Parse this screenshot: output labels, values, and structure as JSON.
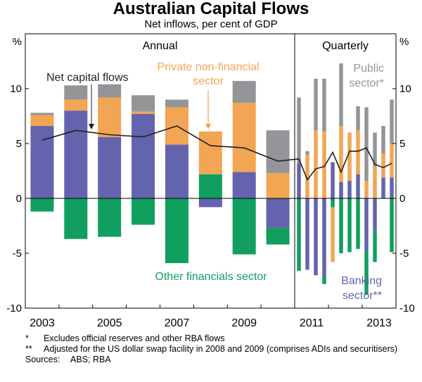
{
  "title": "Australian Capital Flows",
  "subtitle": "Net inflows, per cent of GDP",
  "chart_data": {
    "type": "bar",
    "stacked": true,
    "title": "Australian Capital Flows",
    "subtitle": "Net inflows, per cent of GDP",
    "unit_left": "%",
    "unit_right": "%",
    "ylim": [
      -10,
      15
    ],
    "yticks": [
      10,
      5,
      0,
      -5,
      -10
    ],
    "panels": {
      "annual": "Annual",
      "quarterly": "Quarterly"
    },
    "annual_years": [
      "2003",
      "2004",
      "2005",
      "2006",
      "2007",
      "2008",
      "2009",
      "2010"
    ],
    "quarterly_periods": [
      "2011Q1",
      "2011Q2",
      "2011Q3",
      "2011Q4",
      "2012Q1",
      "2012Q2",
      "2012Q3",
      "2012Q4",
      "2013Q1",
      "2013Q2",
      "2013Q3",
      "2013Q4"
    ],
    "x_tick_labels": [
      "2003",
      "2005",
      "2007",
      "2009",
      "2011",
      "2013"
    ],
    "series": [
      {
        "name": "Banking sector**",
        "color": "#6463ad",
        "annual": [
          6.6,
          8.0,
          5.6,
          7.7,
          4.9,
          -0.8,
          2.4,
          -2.7
        ],
        "quarterly": [
          3.2,
          -6.5,
          -7.0,
          -7.2,
          3.3,
          1.5,
          1.6,
          2.2,
          -4.8,
          -3.0,
          1.9,
          1.9
        ]
      },
      {
        "name": "Other financials sector",
        "color": "#109f5e",
        "annual": [
          -1.2,
          -3.7,
          -3.5,
          -2.4,
          -5.9,
          2.2,
          -5.1,
          -1.5
        ],
        "quarterly": [
          -6.6,
          0.0,
          0.0,
          -0.6,
          -0.8,
          -5.0,
          -4.9,
          -4.6,
          -4.0,
          -2.8,
          0.0,
          -4.9
        ]
      },
      {
        "name": "Private non-financial sector",
        "color": "#f2a552",
        "annual": [
          1.0,
          1.0,
          3.6,
          0.2,
          3.4,
          3.9,
          6.3,
          2.3
        ],
        "quarterly": [
          0.0,
          4.0,
          6.2,
          6.1,
          -5.0,
          5.1,
          4.4,
          4.0,
          1.6,
          2.9,
          2.2,
          3.1
        ]
      },
      {
        "name": "Public sector*",
        "color": "#939598",
        "annual": [
          0.2,
          1.3,
          1.2,
          1.5,
          0.7,
          0.0,
          2.0,
          3.9
        ],
        "quarterly": [
          6.0,
          0.3,
          4.7,
          4.8,
          0.0,
          5.7,
          0.0,
          2.2,
          6.7,
          3.1,
          2.5,
          4.0
        ]
      },
      {
        "name": "Net capital flows",
        "type": "line",
        "color": "#231f20",
        "annual": [
          5.3,
          6.2,
          5.8,
          5.6,
          6.6,
          4.8,
          4.6,
          3.4
        ],
        "quarterly": [
          3.6,
          1.7,
          2.7,
          2.9,
          4.2,
          2.4,
          4.3,
          4.3,
          4.6,
          3.1,
          2.8,
          3.2
        ]
      }
    ],
    "annotations": {
      "net": "Net capital flows",
      "private_l1": "Private non-financial",
      "private_l2": "sector",
      "public_l1": "Public",
      "public_l2": "sector*",
      "other": "Other financials sector",
      "banking_l1": "Banking",
      "banking_l2": "sector**"
    }
  },
  "notes": [
    {
      "symbol": "*",
      "text": "Excludes official reserves and other RBA flows"
    },
    {
      "symbol": "**",
      "text": "Adjusted for the US dollar swap facility in 2008 and 2009 (comprises ADIs and securitisers)"
    }
  ],
  "sources": {
    "label": "Sources:",
    "text": "ABS; RBA"
  }
}
